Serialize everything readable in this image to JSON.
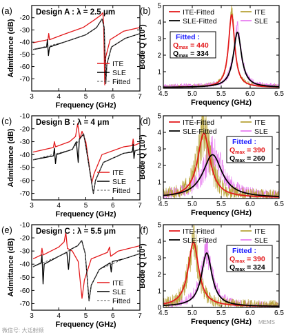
{
  "figure": {
    "watermarks": [
      "微信号: 大话射频",
      "MEMS"
    ]
  },
  "chart_data": [
    {
      "id": "a",
      "panel_label": "(a)",
      "type": "line",
      "title": "Design A : λ = 2.5 μm",
      "xlabel": "Frequency (GHz)",
      "ylabel": "Admittance (dB)",
      "xlim": [
        3,
        7
      ],
      "ylim": [
        -80,
        -10
      ],
      "xticks": [
        3,
        4,
        5,
        6,
        7
      ],
      "yticks": [
        -70,
        -60,
        -50,
        -40,
        -30,
        -20
      ],
      "legend": {
        "position": "bottom-right",
        "entries": [
          "ITE",
          "SLE",
          "Fitted"
        ]
      },
      "series": [
        {
          "name": "ITE",
          "color": "#e31a1c",
          "style": "solid",
          "points": [
            [
              3.05,
              -40.5
            ],
            [
              3.6,
              -38
            ],
            [
              3.63,
              -33
            ],
            [
              3.66,
              -38
            ],
            [
              4.2,
              -33.5
            ],
            [
              4.9,
              -28
            ],
            [
              5.3,
              -22
            ],
            [
              5.55,
              -18
            ],
            [
              5.63,
              -16
            ],
            [
              5.66,
              -25
            ],
            [
              5.7,
              -75
            ],
            [
              5.74,
              -52
            ],
            [
              5.9,
              -38
            ],
            [
              6.4,
              -31
            ],
            [
              7.0,
              -28
            ]
          ]
        },
        {
          "name": "SLE",
          "color": "#000000",
          "style": "solid",
          "points": [
            [
              3.05,
              -46
            ],
            [
              3.55,
              -44
            ],
            [
              3.58,
              -38
            ],
            [
              3.62,
              -51
            ],
            [
              3.66,
              -44
            ],
            [
              4.2,
              -40
            ],
            [
              5.0,
              -34
            ],
            [
              5.4,
              -28
            ],
            [
              5.6,
              -21
            ],
            [
              5.68,
              -28
            ],
            [
              5.74,
              -74
            ],
            [
              5.78,
              -58
            ],
            [
              5.95,
              -44
            ],
            [
              6.45,
              -37
            ],
            [
              7.0,
              -33
            ]
          ]
        },
        {
          "name": "Fitted",
          "color": "#555555",
          "style": "dashed",
          "points": [
            [
              3.05,
              -46
            ],
            [
              4.2,
              -40
            ],
            [
              5.0,
              -34
            ],
            [
              5.4,
              -28
            ],
            [
              5.6,
              -21
            ],
            [
              5.68,
              -28
            ],
            [
              5.74,
              -74
            ],
            [
              5.78,
              -58
            ],
            [
              5.95,
              -44
            ],
            [
              6.45,
              -37
            ],
            [
              7.0,
              -33
            ]
          ]
        }
      ]
    },
    {
      "id": "b",
      "panel_label": "(b)",
      "type": "line",
      "title": "",
      "xlabel": "Frequency (GHz)",
      "ylabel": "Bode Q (10²)",
      "xlim": [
        4.5,
        6.5
      ],
      "ylim": [
        0,
        5
      ],
      "xticks": [
        4.5,
        5.0,
        5.5,
        6.0,
        6.5
      ],
      "yticks": [
        0,
        1,
        2,
        3,
        4,
        5
      ],
      "legend": {
        "position": "top",
        "entries": [
          "ITE-Fitted",
          "ITE",
          "SLE-Fitted",
          "SLE"
        ]
      },
      "annotation": {
        "heading": "Fitted :",
        "q_ite": "Q",
        "q_ite_sub": "max",
        "q_ite_val": " = 440",
        "q_sle": "Q",
        "q_sle_sub": "max",
        "q_sle_val": " = 334"
      },
      "series": [
        {
          "name": "ITE",
          "color": "#b8a43a",
          "kind": "noisy",
          "center": 5.68,
          "gamma": 0.06,
          "peak": 4.6,
          "noise": 0.35,
          "seed": 11
        },
        {
          "name": "SLE",
          "color": "#e87ff0",
          "kind": "noisy",
          "center": 5.78,
          "gamma": 0.08,
          "peak": 3.5,
          "noise": 0.45,
          "seed": 23
        },
        {
          "name": "ITE-Fitted",
          "color": "#e31a1c",
          "kind": "lorentz",
          "center": 5.68,
          "gamma": 0.065,
          "peak": 4.4
        },
        {
          "name": "SLE-Fitted",
          "color": "#000000",
          "kind": "lorentz",
          "center": 5.78,
          "gamma": 0.085,
          "peak": 3.34
        }
      ]
    },
    {
      "id": "c",
      "panel_label": "(c)",
      "type": "line",
      "title": "Design B : λ = 4 μm",
      "xlabel": "Frequency (GHz)",
      "ylabel": "Admittance (dB)",
      "xlim": [
        3,
        7
      ],
      "ylim": [
        -75,
        -10
      ],
      "xticks": [
        3,
        4,
        5,
        6,
        7
      ],
      "yticks": [
        -70,
        -60,
        -50,
        -40,
        -30,
        -20,
        -10
      ],
      "legend": {
        "position": "bottom-right",
        "entries": [
          "ITE",
          "SLE",
          "Fitted"
        ]
      },
      "series": [
        {
          "name": "ITE",
          "color": "#e31a1c",
          "style": "solid",
          "points": [
            [
              3.05,
              -38
            ],
            [
              3.8,
              -34.5
            ],
            [
              3.84,
              -30
            ],
            [
              3.88,
              -34
            ],
            [
              4.4,
              -30
            ],
            [
              4.62,
              -26
            ],
            [
              4.7,
              -16
            ],
            [
              4.78,
              -28
            ],
            [
              4.86,
              -22
            ],
            [
              5.0,
              -30
            ],
            [
              5.22,
              -62
            ],
            [
              5.3,
              -55
            ],
            [
              5.6,
              -40
            ],
            [
              6.4,
              -34
            ],
            [
              6.72,
              -33
            ],
            [
              6.75,
              -28
            ],
            [
              6.78,
              -33
            ],
            [
              7.0,
              -31
            ]
          ]
        },
        {
          "name": "SLE",
          "color": "#000000",
          "style": "solid",
          "points": [
            [
              3.05,
              -44
            ],
            [
              3.8,
              -41
            ],
            [
              3.84,
              -35
            ],
            [
              3.88,
              -47
            ],
            [
              3.92,
              -40
            ],
            [
              4.5,
              -36
            ],
            [
              4.65,
              -30
            ],
            [
              4.72,
              -46
            ],
            [
              4.76,
              -28
            ],
            [
              4.92,
              -24
            ],
            [
              5.02,
              -36
            ],
            [
              5.28,
              -70
            ],
            [
              5.36,
              -60
            ],
            [
              5.65,
              -46
            ],
            [
              6.4,
              -39
            ],
            [
              6.72,
              -38
            ],
            [
              6.75,
              -32
            ],
            [
              6.78,
              -43
            ],
            [
              6.82,
              -37
            ],
            [
              7.0,
              -36
            ]
          ]
        },
        {
          "name": "Fitted",
          "color": "#555555",
          "style": "dashed",
          "points": [
            [
              3.05,
              -44
            ],
            [
              4.5,
              -36
            ],
            [
              4.92,
              -24
            ],
            [
              5.02,
              -36
            ],
            [
              5.28,
              -70
            ],
            [
              5.36,
              -60
            ],
            [
              5.65,
              -46
            ],
            [
              6.4,
              -39
            ],
            [
              7.0,
              -36
            ]
          ]
        }
      ]
    },
    {
      "id": "d",
      "panel_label": "(d)",
      "type": "line",
      "title": "",
      "xlabel": "Frequency (GHz)",
      "ylabel": "Bode Q (10²)",
      "xlim": [
        4.5,
        6.5
      ],
      "ylim": [
        0,
        5
      ],
      "xticks": [
        4.5,
        5.0,
        5.5,
        6.0,
        6.5
      ],
      "yticks": [
        0,
        1,
        2,
        3,
        4,
        5
      ],
      "legend": {
        "position": "top",
        "entries": [
          "ITE-Fitted",
          "ITE",
          "SLE-Fitted",
          "SLE"
        ]
      },
      "annotation": {
        "heading": "Fitted :",
        "q_ite": "Q",
        "q_ite_sub": "max",
        "q_ite_val": " = 390",
        "q_sle": "Q",
        "q_sle_sub": "max",
        "q_sle_val": " = 260"
      },
      "series": [
        {
          "name": "SLE",
          "color": "#e87ff0",
          "kind": "noisy",
          "center": 5.35,
          "gamma": 0.2,
          "peak": 2.6,
          "noise": 0.9,
          "seed": 37
        },
        {
          "name": "ITE",
          "color": "#b8a43a",
          "kind": "noisy",
          "center": 5.2,
          "gamma": 0.13,
          "peak": 4.0,
          "noise": 1.3,
          "seed": 51
        },
        {
          "name": "ITE-Fitted",
          "color": "#e31a1c",
          "kind": "lorentz",
          "center": 5.2,
          "gamma": 0.13,
          "peak": 3.9
        },
        {
          "name": "SLE-Fitted",
          "color": "#000000",
          "kind": "lorentz",
          "center": 5.35,
          "gamma": 0.2,
          "peak": 2.6
        }
      ]
    },
    {
      "id": "e",
      "panel_label": "(e)",
      "type": "line",
      "title": "Design C : λ = 5.5 μm",
      "xlabel": "Frequency (GHz)",
      "ylabel": "Admittance (dB)",
      "xlim": [
        3,
        7
      ],
      "ylim": [
        -75,
        -10
      ],
      "xticks": [
        3,
        4,
        5,
        6,
        7
      ],
      "yticks": [
        -70,
        -60,
        -50,
        -40,
        -30,
        -20,
        -10
      ],
      "legend": {
        "position": "bottom-right",
        "entries": [
          "ITE",
          "SLE",
          "Fitted"
        ]
      },
      "series": [
        {
          "name": "ITE",
          "color": "#e31a1c",
          "style": "solid",
          "points": [
            [
              3.05,
              -36
            ],
            [
              3.35,
              -33
            ],
            [
              3.38,
              -28
            ],
            [
              3.42,
              -33
            ],
            [
              4.0,
              -27
            ],
            [
              4.2,
              -23
            ],
            [
              4.26,
              -16
            ],
            [
              4.32,
              -28
            ],
            [
              4.5,
              -30
            ],
            [
              4.72,
              -38
            ],
            [
              4.86,
              -66
            ],
            [
              4.95,
              -52
            ],
            [
              5.2,
              -36
            ],
            [
              5.8,
              -31
            ],
            [
              5.88,
              -27
            ],
            [
              5.92,
              -34
            ],
            [
              6.2,
              -30
            ],
            [
              7.0,
              -26
            ]
          ]
        },
        {
          "name": "SLE",
          "color": "#000000",
          "style": "solid",
          "points": [
            [
              3.05,
              -42
            ],
            [
              3.35,
              -39
            ],
            [
              3.38,
              -33
            ],
            [
              3.42,
              -55
            ],
            [
              3.46,
              -40
            ],
            [
              4.0,
              -34
            ],
            [
              4.3,
              -31
            ],
            [
              4.36,
              -44
            ],
            [
              4.42,
              -29
            ],
            [
              4.7,
              -26
            ],
            [
              4.85,
              -22
            ],
            [
              4.98,
              -32
            ],
            [
              5.12,
              -68
            ],
            [
              5.2,
              -56
            ],
            [
              5.5,
              -44
            ],
            [
              5.9,
              -39
            ],
            [
              5.94,
              -46
            ],
            [
              5.98,
              -38
            ],
            [
              6.4,
              -36
            ],
            [
              7.0,
              -32
            ]
          ]
        },
        {
          "name": "Fitted",
          "color": "#555555",
          "style": "dashed",
          "points": [
            [
              3.05,
              -42
            ],
            [
              4.0,
              -34
            ],
            [
              4.7,
              -26
            ],
            [
              4.85,
              -22
            ],
            [
              4.98,
              -32
            ],
            [
              5.12,
              -68
            ],
            [
              5.2,
              -56
            ],
            [
              5.5,
              -44
            ],
            [
              6.4,
              -36
            ],
            [
              7.0,
              -32
            ]
          ]
        }
      ]
    },
    {
      "id": "f",
      "panel_label": "(f)",
      "type": "line",
      "title": "",
      "xlabel": "Frequency (GHz)",
      "ylabel": "Bode Q (10²)",
      "xlim": [
        4.5,
        6.5
      ],
      "ylim": [
        0,
        5
      ],
      "xticks": [
        4.5,
        5.0,
        5.5,
        6.0,
        6.5
      ],
      "yticks": [
        0,
        1,
        2,
        3,
        4,
        5
      ],
      "legend": {
        "position": "top",
        "entries": [
          "ITE-Fitted",
          "ITE",
          "SLE-Fitted",
          "SLE"
        ]
      },
      "annotation": {
        "heading": "Fitted :",
        "q_ite": "Q",
        "q_ite_sub": "max",
        "q_ite_val": " = 390",
        "q_sle": "Q",
        "q_sle_sub": "max",
        "q_sle_val": " = 324"
      },
      "series": [
        {
          "name": "SLE",
          "color": "#e87ff0",
          "kind": "noisy",
          "center": 5.25,
          "gamma": 0.12,
          "peak": 3.2,
          "noise": 0.7,
          "seed": 63
        },
        {
          "name": "ITE",
          "color": "#b8a43a",
          "kind": "noisy",
          "center": 5.02,
          "gamma": 0.1,
          "peak": 4.0,
          "noise": 1.1,
          "seed": 79
        },
        {
          "name": "ITE-Fitted",
          "color": "#e31a1c",
          "kind": "lorentz",
          "center": 5.02,
          "gamma": 0.11,
          "peak": 3.9
        },
        {
          "name": "SLE-Fitted",
          "color": "#000000",
          "kind": "lorentz",
          "center": 5.25,
          "gamma": 0.11,
          "peak": 3.24
        }
      ]
    }
  ]
}
